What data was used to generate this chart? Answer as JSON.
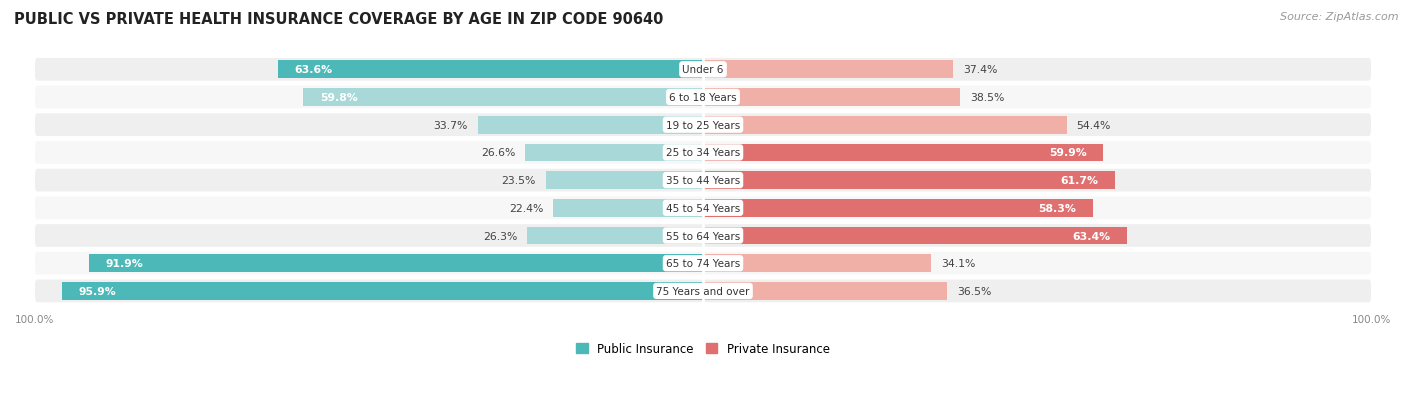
{
  "title": "PUBLIC VS PRIVATE HEALTH INSURANCE COVERAGE BY AGE IN ZIP CODE 90640",
  "source": "Source: ZipAtlas.com",
  "categories": [
    "Under 6",
    "6 to 18 Years",
    "19 to 25 Years",
    "25 to 34 Years",
    "35 to 44 Years",
    "45 to 54 Years",
    "55 to 64 Years",
    "65 to 74 Years",
    "75 Years and over"
  ],
  "public_values": [
    63.6,
    59.8,
    33.7,
    26.6,
    23.5,
    22.4,
    26.3,
    91.9,
    95.9
  ],
  "private_values": [
    37.4,
    38.5,
    54.4,
    59.9,
    61.7,
    58.3,
    63.4,
    34.1,
    36.5
  ],
  "public_color_strong": "#4db8b8",
  "public_color_light": "#a8d8d8",
  "private_color_strong": "#e07070",
  "private_color_light": "#f0b0a8",
  "public_label": "Public Insurance",
  "private_label": "Private Insurance",
  "title_fontsize": 10.5,
  "source_fontsize": 8,
  "xlim_left": -100,
  "xlim_right": 100,
  "inside_label_threshold_pub": 45,
  "inside_label_threshold_priv": 55
}
